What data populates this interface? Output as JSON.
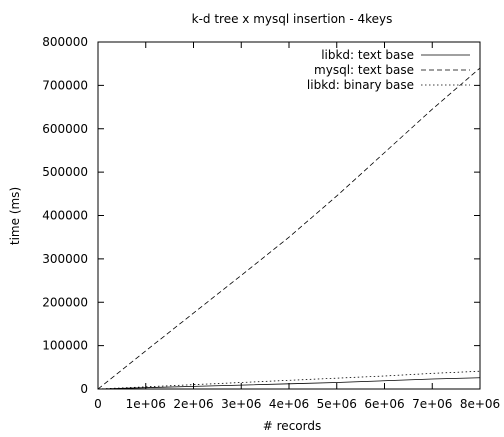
{
  "chart_data": {
    "type": "line",
    "title": "k-d tree x mysql insertion - 4keys",
    "xlabel": "# records",
    "ylabel": "time (ms)",
    "xlim": [
      0,
      8000000
    ],
    "ylim": [
      0,
      800000
    ],
    "x_ticks": [
      0,
      1000000,
      2000000,
      3000000,
      4000000,
      5000000,
      6000000,
      7000000,
      8000000
    ],
    "x_tick_labels": [
      "0",
      "1e+06",
      "2e+06",
      "3e+06",
      "4e+06",
      "5e+06",
      "6e+06",
      "7e+06",
      "8e+06"
    ],
    "y_ticks": [
      0,
      100000,
      200000,
      300000,
      400000,
      500000,
      600000,
      700000,
      800000
    ],
    "y_tick_labels": [
      "0",
      "100000",
      "200000",
      "300000",
      "400000",
      "500000",
      "600000",
      "700000",
      "800000"
    ],
    "grid": false,
    "legend_position": "top-right",
    "series": [
      {
        "name": "libkd: text base",
        "dash": "solid",
        "x": [
          0,
          1000000,
          2000000,
          3000000,
          4000000,
          5000000,
          6000000,
          7000000,
          8000000
        ],
        "y": [
          0,
          3000,
          6000,
          9000,
          12000,
          15000,
          19000,
          23000,
          26000
        ]
      },
      {
        "name": "mysql: text base",
        "dash": "dashed",
        "x": [
          0,
          1000000,
          2000000,
          3000000,
          4000000,
          5000000,
          6000000,
          7000000,
          8000000
        ],
        "y": [
          0,
          88000,
          175000,
          262000,
          350000,
          445000,
          545000,
          645000,
          740000
        ]
      },
      {
        "name": "libkd: binary base",
        "dash": "dotted",
        "x": [
          0,
          1000000,
          2000000,
          3000000,
          4000000,
          5000000,
          6000000,
          7000000,
          8000000
        ],
        "y": [
          0,
          5000,
          10000,
          15000,
          20000,
          25000,
          30000,
          36000,
          41000
        ]
      }
    ]
  }
}
